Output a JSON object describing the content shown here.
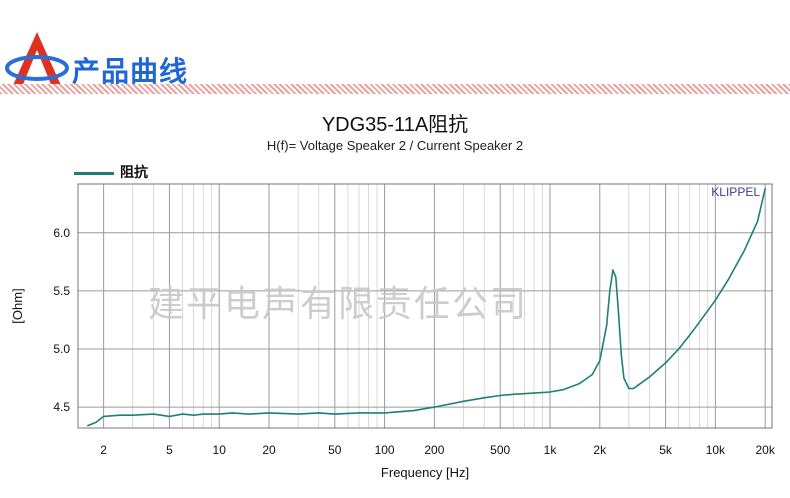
{
  "header": {
    "title": "产品曲线"
  },
  "chart_data": {
    "type": "line",
    "title": "YDG35-11A阻抗",
    "subtitle": "H(f)= Voltage Speaker 2 / Current Speaker 2",
    "xlabel": "Frequency [Hz]",
    "ylabel": "[Ohm]",
    "xscale": "log",
    "xlim": [
      1.4,
      22000
    ],
    "ylim": [
      4.32,
      6.42
    ],
    "xticks": [
      2,
      5,
      10,
      20,
      50,
      100,
      200,
      500,
      1000,
      2000,
      5000,
      10000,
      20000
    ],
    "xtick_labels": [
      "2",
      "5",
      "10",
      "20",
      "50",
      "100",
      "200",
      "500",
      "1k",
      "2k",
      "5k",
      "10k",
      "20k"
    ],
    "yticks": [
      4.5,
      5.0,
      5.5,
      6.0
    ],
    "ytick_labels": [
      "4.5",
      "5.0",
      "5.5",
      "6.0"
    ],
    "grid": true,
    "legend_position": "top-left",
    "annotation": "KLIPPEL",
    "watermark": "建平电声有限责任公司",
    "series": [
      {
        "name": "阻抗",
        "color": "#1f7f78",
        "x": [
          1.6,
          1.8,
          2,
          2.5,
          3,
          4,
          5,
          6,
          7,
          8,
          10,
          12,
          15,
          20,
          30,
          40,
          50,
          70,
          100,
          150,
          200,
          300,
          400,
          500,
          600,
          800,
          1000,
          1200,
          1500,
          1800,
          2000,
          2200,
          2300,
          2400,
          2500,
          2600,
          2700,
          2800,
          3000,
          3200,
          3500,
          4000,
          5000,
          6000,
          7000,
          8000,
          10000,
          12000,
          15000,
          18000,
          20000
        ],
        "y": [
          4.34,
          4.37,
          4.42,
          4.43,
          4.43,
          4.44,
          4.42,
          4.44,
          4.43,
          4.44,
          4.44,
          4.45,
          4.44,
          4.45,
          4.44,
          4.45,
          4.44,
          4.45,
          4.45,
          4.47,
          4.5,
          4.55,
          4.58,
          4.6,
          4.61,
          4.62,
          4.63,
          4.65,
          4.7,
          4.78,
          4.9,
          5.2,
          5.5,
          5.68,
          5.62,
          5.3,
          4.95,
          4.75,
          4.66,
          4.66,
          4.7,
          4.76,
          4.88,
          5.0,
          5.12,
          5.23,
          5.42,
          5.6,
          5.85,
          6.1,
          6.38
        ]
      }
    ]
  }
}
